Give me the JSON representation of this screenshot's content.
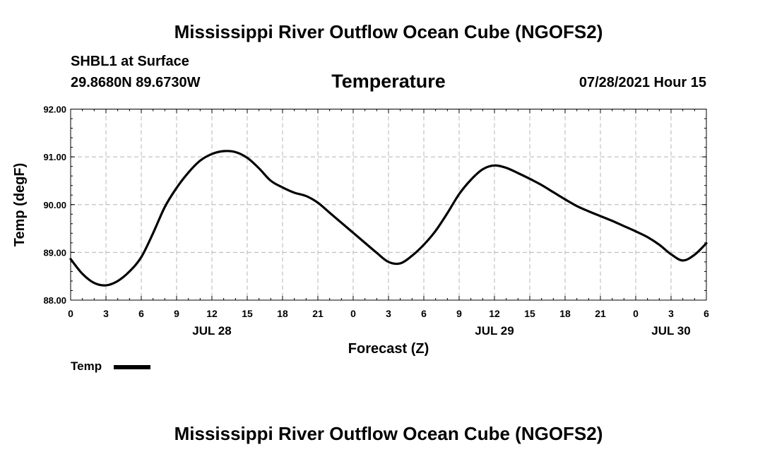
{
  "header": {
    "title": "Mississippi River Outflow Ocean Cube (NGOFS2)",
    "station": "SHBL1 at Surface",
    "coords": "29.8680N  89.6730W",
    "variable_title": "Temperature",
    "datetime": "07/28/2021 Hour 15"
  },
  "footer": {
    "title": "Mississippi River Outflow Ocean Cube (NGOFS2)"
  },
  "legend": {
    "label": "Temp"
  },
  "chart_data": {
    "type": "line",
    "title": "Temperature",
    "xlabel": "Forecast (Z)",
    "ylabel": "Temp (degF)",
    "xlim": [
      0,
      54
    ],
    "ylim": [
      88.0,
      92.0
    ],
    "y_ticks": [
      "88.00",
      "89.00",
      "90.00",
      "91.00",
      "92.00"
    ],
    "y_tick_values": [
      88.0,
      89.0,
      90.0,
      91.0,
      92.0
    ],
    "x_ticks": [
      "0",
      "3",
      "6",
      "9",
      "12",
      "15",
      "18",
      "21",
      "0",
      "3",
      "6",
      "9",
      "12",
      "15",
      "18",
      "21",
      "0",
      "3",
      "6"
    ],
    "day_labels": [
      {
        "label": "JUL 28",
        "x": 12
      },
      {
        "label": "JUL 29",
        "x": 36
      },
      {
        "label": "JUL 30",
        "x": 51
      }
    ],
    "grid": true,
    "series": [
      {
        "name": "Temp",
        "x": [
          0,
          1,
          2,
          3,
          4,
          5,
          6,
          7,
          8,
          9,
          10,
          11,
          12,
          13,
          14,
          15,
          16,
          17,
          18,
          19,
          20,
          21,
          22,
          23,
          24,
          25,
          26,
          27,
          28,
          29,
          30,
          31,
          32,
          33,
          34,
          35,
          36,
          37,
          38,
          39,
          40,
          41,
          42,
          43,
          44,
          45,
          46,
          47,
          48,
          49,
          50,
          51,
          52,
          53,
          54
        ],
        "values": [
          88.86,
          88.55,
          88.36,
          88.31,
          88.4,
          88.6,
          88.9,
          89.4,
          89.95,
          90.35,
          90.67,
          90.92,
          91.06,
          91.12,
          91.1,
          90.98,
          90.76,
          90.5,
          90.36,
          90.25,
          90.18,
          90.04,
          89.83,
          89.62,
          89.41,
          89.2,
          88.99,
          88.8,
          88.77,
          88.93,
          89.16,
          89.45,
          89.82,
          90.22,
          90.52,
          90.74,
          90.82,
          90.77,
          90.66,
          90.54,
          90.41,
          90.26,
          90.11,
          89.97,
          89.86,
          89.76,
          89.66,
          89.55,
          89.44,
          89.32,
          89.16,
          88.96,
          88.83,
          88.95,
          89.19
        ]
      }
    ]
  },
  "colors": {
    "line": "#000000",
    "grid": "#b4b4b4",
    "background": "#ffffff"
  }
}
